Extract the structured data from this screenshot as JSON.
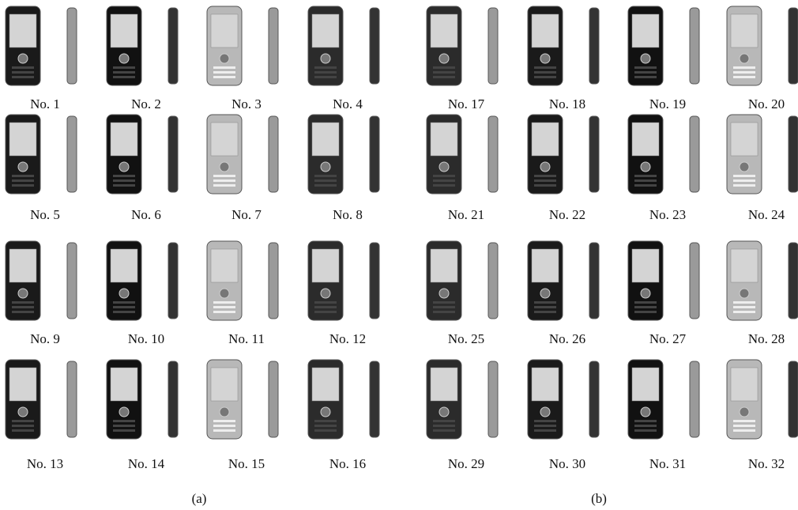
{
  "panels": [
    {
      "label": "(a)",
      "items": [
        "No. 1",
        "No. 2",
        "No. 3",
        "No. 4",
        "No. 5",
        "No. 6",
        "No. 7",
        "No. 8",
        "No. 9",
        "No. 10",
        "No. 11",
        "No. 12",
        "No. 13",
        "No. 14",
        "No. 15",
        "No. 16"
      ]
    },
    {
      "label": "(b)",
      "items": [
        "No. 17",
        "No. 18",
        "No. 19",
        "No. 20",
        "No. 21",
        "No. 22",
        "No. 23",
        "No. 24",
        "No. 25",
        "No. 26",
        "No. 27",
        "No. 28",
        "No. 29",
        "No. 30",
        "No. 31",
        "No. 32"
      ]
    }
  ]
}
